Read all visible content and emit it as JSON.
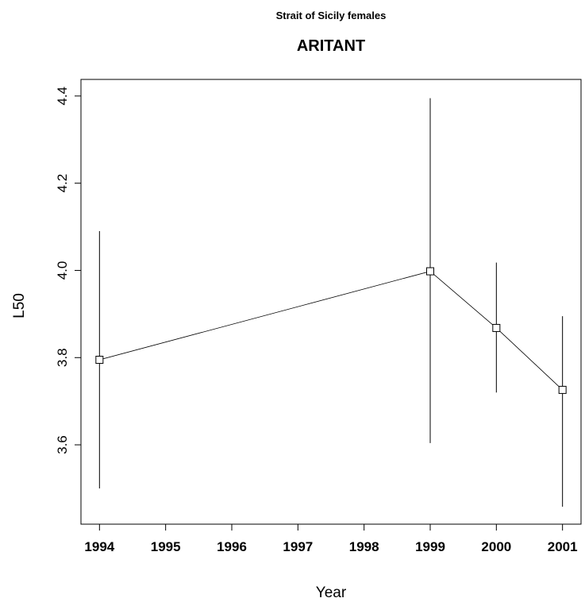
{
  "chart_data": {
    "type": "line",
    "suptitle": "Strait of Sicily females",
    "title": "ARITANT",
    "x_label": "Year",
    "y_label": "L50",
    "x": [
      1994,
      1999,
      2000,
      2001
    ],
    "series": [
      {
        "color": "#000000",
        "values": [
          3.795,
          3.998,
          3.868,
          3.726
        ],
        "lower": [
          3.5,
          3.604,
          3.72,
          3.458
        ],
        "upper": [
          4.09,
          4.395,
          4.018,
          3.895
        ]
      }
    ],
    "xlim": [
      1993.72,
      2001.28
    ],
    "xticks": [
      1994,
      1995,
      1996,
      1997,
      1998,
      1999,
      2000,
      2001
    ],
    "ylim": [
      3.418,
      4.438
    ],
    "yticks": [
      3.6,
      3.8,
      {
        "value": 4.0,
        "label": "4.0"
      },
      4.2,
      4.4
    ]
  }
}
